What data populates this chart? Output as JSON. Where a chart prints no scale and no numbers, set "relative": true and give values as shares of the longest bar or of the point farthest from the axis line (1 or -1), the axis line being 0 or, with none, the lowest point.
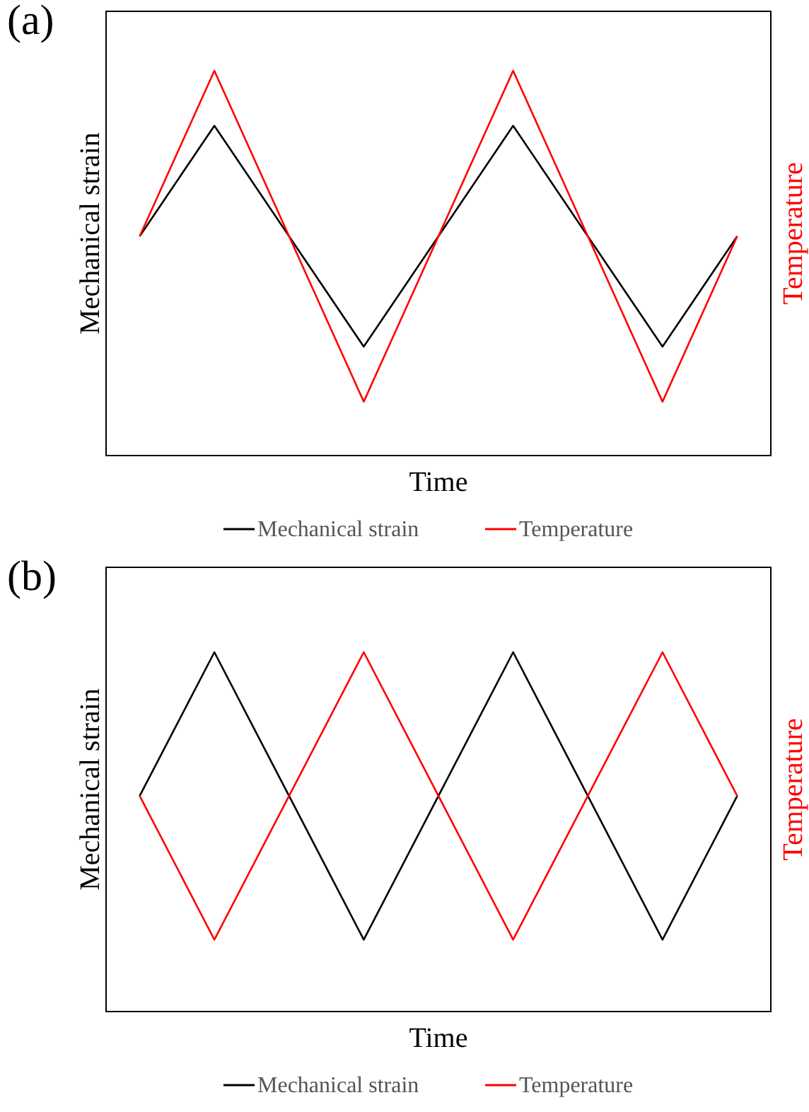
{
  "chart_data": [
    {
      "type": "line",
      "title": "(a)",
      "xlabel": "Time",
      "ylabel": "Mechanical strain",
      "y2label": "Temperature",
      "relative": true,
      "categories": [
        null,
        null,
        null,
        null,
        null,
        null,
        null,
        null,
        null
      ],
      "legend": "bottom",
      "marker": "none",
      "line_style": "solid",
      "grid": false,
      "series": [
        {
          "name": "Mechanical strain",
          "color": "#000000",
          "values": [
            0.57,
            0.857,
            0.57,
            0.283,
            0.57,
            0.857,
            0.57,
            0.283,
            0.57
          ]
        },
        {
          "name": "Temperature",
          "color": "#ff0000",
          "values": [
            0.57,
            1,
            0.57,
            0.14,
            0.57,
            1,
            0.57,
            0.14,
            0.57
          ]
        }
      ]
    },
    {
      "type": "line",
      "title": "(b)",
      "xlabel": "Time",
      "ylabel": "Mechanical strain",
      "y2label": "Temperature",
      "relative": true,
      "categories": [
        null,
        null,
        null,
        null,
        null,
        null,
        null,
        null,
        null
      ],
      "legend": "bottom",
      "marker": "none",
      "line_style": "solid",
      "grid": false,
      "series": [
        {
          "name": "Mechanical strain",
          "color": "#000000",
          "values": [
            0.6,
            1,
            0.6,
            0.2,
            0.6,
            1,
            0.6,
            0.2,
            0.6
          ]
        },
        {
          "name": "Temperature",
          "color": "#ff0000",
          "values": [
            0.6,
            0.2,
            0.6,
            1,
            0.6,
            0.2,
            0.6,
            1,
            0.6
          ]
        }
      ]
    }
  ]
}
